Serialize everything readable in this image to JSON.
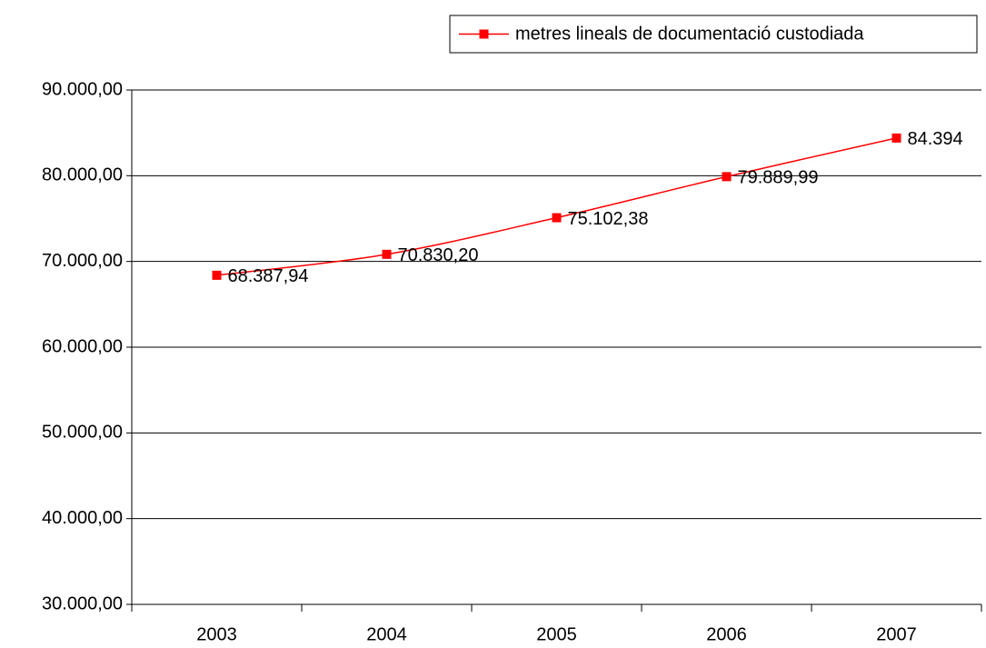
{
  "chart_data": {
    "type": "line",
    "categories": [
      "2003",
      "2004",
      "2005",
      "2006",
      "2007"
    ],
    "series": [
      {
        "name": "metres lineals de documentació custodiada",
        "color": "#ff0000",
        "values": [
          68387.94,
          70830.2,
          75102.38,
          79889.99,
          84394
        ],
        "value_labels": [
          "68.387,94",
          "70.830,20",
          "75.102,38",
          "79.889,99",
          "84.394"
        ]
      }
    ],
    "ylim": [
      30000,
      90000
    ],
    "yticks": [
      {
        "value": 30000,
        "label": "30.000,00"
      },
      {
        "value": 40000,
        "label": "40.000,00"
      },
      {
        "value": 50000,
        "label": "50.000,00"
      },
      {
        "value": 60000,
        "label": "60.000,00"
      },
      {
        "value": 70000,
        "label": "70.000,00"
      },
      {
        "value": 80000,
        "label": "80.000,00"
      },
      {
        "value": 90000,
        "label": "90.000,00"
      }
    ],
    "grid": true,
    "legend": "top-right",
    "smooth": true
  }
}
